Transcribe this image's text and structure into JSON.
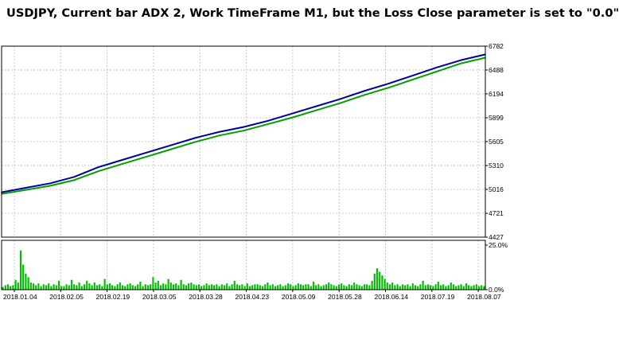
{
  "title": "USDJPY, Current bar ADX 2, Work TimeFrame M1, but the Loss Close parameter is set to \"0.0\"",
  "colors": {
    "balance": "#0000a0",
    "equity": "#00a000",
    "deposit_load": "#00c000",
    "grid": "#c8c8c8",
    "axis": "#000000"
  },
  "chart_data": [
    {
      "type": "line",
      "series": [
        {
          "name": "",
          "color": "#0000a0",
          "x": [
            0,
            5,
            10,
            15,
            20,
            25,
            30,
            35,
            40,
            45,
            50,
            55,
            60,
            65,
            70,
            75,
            80,
            85,
            90,
            95,
            100
          ],
          "values": [
            4980,
            5035,
            5090,
            5170,
            5290,
            5380,
            5470,
            5560,
            5650,
            5725,
            5785,
            5860,
            5950,
            6040,
            6130,
            6230,
            6320,
            6420,
            6520,
            6610,
            6680
          ]
        },
        {
          "name": "",
          "color": "#00a000",
          "x": [
            0,
            5,
            10,
            15,
            20,
            25,
            30,
            35,
            40,
            45,
            50,
            55,
            60,
            65,
            70,
            75,
            80,
            85,
            90,
            95,
            100
          ],
          "values": [
            4960,
            5010,
            5060,
            5130,
            5240,
            5330,
            5420,
            5510,
            5600,
            5680,
            5740,
            5820,
            5900,
            5990,
            6080,
            6180,
            6270,
            6370,
            6470,
            6570,
            6640
          ]
        }
      ],
      "x_tick_labels": [
        "2018.01.04",
        "2018.02.05",
        "2018.02.19",
        "2018.03.05",
        "2018.03.28",
        "2018.04.23",
        "2018.05.09",
        "2018.05.28",
        "2018.06.14",
        "2018.07.19",
        "2018.08.07"
      ],
      "y_tick_labels": [
        "6782",
        "6488",
        "6194",
        "5899",
        "5605",
        "5310",
        "5016",
        "4721",
        "4427"
      ],
      "ylim": [
        4427,
        6782
      ],
      "grid": true,
      "xlabel": "",
      "ylabel": ""
    },
    {
      "type": "bar",
      "series": [
        {
          "name": "",
          "color": "#00c000",
          "values": [
            1.5,
            2.5,
            3,
            2,
            2.5,
            5.5,
            4,
            22,
            14,
            9,
            7,
            4,
            3.5,
            2.5,
            3.5,
            2,
            3,
            2.5,
            3.5,
            2,
            3,
            2.5,
            5,
            2,
            2,
            3,
            2.5,
            5.5,
            3,
            2.5,
            4,
            2,
            3,
            5,
            3.5,
            2.5,
            4,
            2.5,
            3,
            2,
            6,
            3,
            3.5,
            2.5,
            2,
            3,
            4,
            2.5,
            2,
            3,
            3.5,
            2.5,
            2,
            3,
            4.5,
            2,
            3,
            2.5,
            3,
            7,
            4,
            5,
            2.5,
            3.5,
            3,
            6,
            4,
            3,
            3.5,
            2.5,
            5.5,
            3,
            2.5,
            3.5,
            4,
            3,
            2.5,
            3,
            2,
            2.5,
            3.5,
            2.5,
            3,
            2.5,
            3,
            2,
            3,
            2.5,
            3.5,
            2,
            3,
            5,
            3,
            2.5,
            3,
            2,
            3.5,
            2,
            2.5,
            3,
            3,
            2.5,
            2,
            3,
            4,
            2.5,
            3,
            2,
            2.5,
            3,
            2,
            2.5,
            3.5,
            3,
            2,
            2.5,
            3.5,
            3,
            2.5,
            3,
            3,
            2,
            4.5,
            2.5,
            3,
            2,
            2.5,
            3,
            4,
            3,
            2.5,
            2,
            3,
            3.5,
            2.5,
            2,
            3,
            2.5,
            4,
            3,
            2.5,
            2,
            3,
            3,
            2.5,
            5,
            9,
            12,
            10,
            8,
            6,
            4,
            3,
            4,
            2.5,
            3,
            2,
            3,
            2.5,
            3,
            2,
            3.5,
            2.5,
            2,
            3,
            5,
            2.5,
            3,
            2.5,
            2,
            3,
            4.5,
            2.5,
            3,
            2,
            2.5,
            4,
            3,
            2,
            2.5,
            3,
            2,
            3.5,
            2.5,
            2,
            2.5,
            3,
            2,
            2.5,
            2
          ]
        }
      ],
      "y_tick_labels": [
        "25.0%",
        "0.0%"
      ],
      "ylim": [
        0,
        25
      ],
      "grid": true,
      "xlabel": "",
      "ylabel": ""
    }
  ]
}
